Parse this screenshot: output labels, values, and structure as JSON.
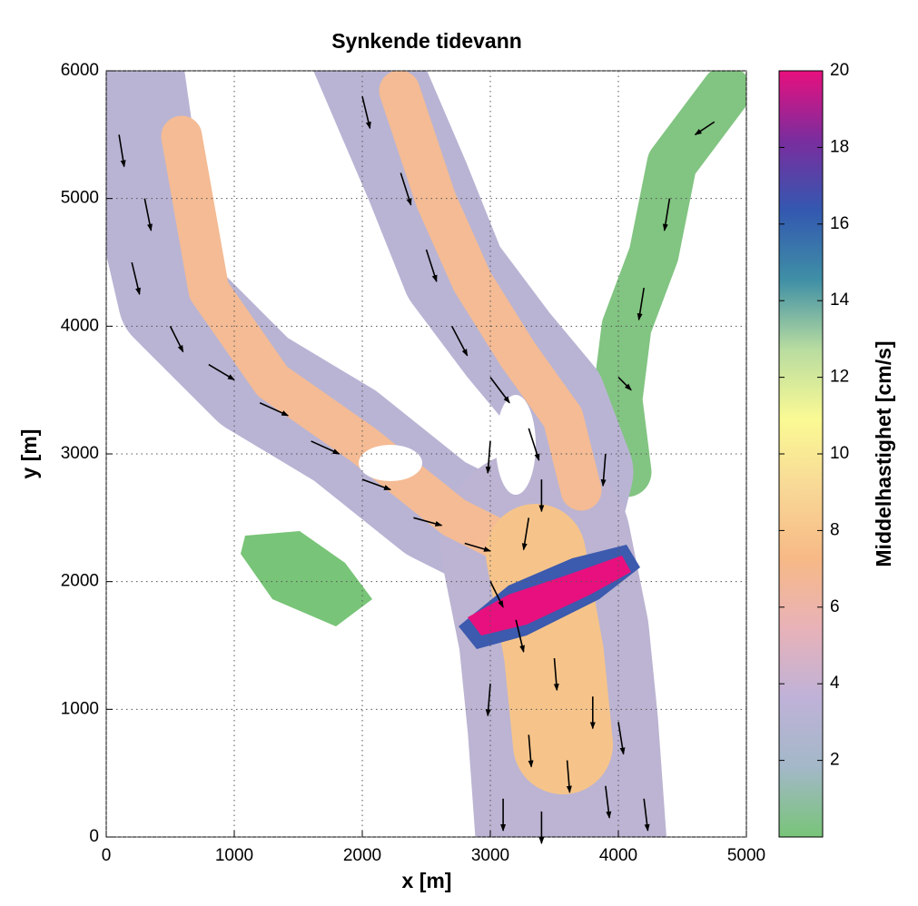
{
  "chart_data": {
    "type": "quiver",
    "title": "Synkende tidevann",
    "x_label": "x [m]",
    "y_label": "y [m]",
    "xlim": [
      0,
      5000
    ],
    "xticks": [
      0,
      1000,
      2000,
      3000,
      4000,
      5000
    ],
    "ylim": [
      0,
      6000
    ],
    "yticks": [
      0,
      1000,
      2000,
      3000,
      4000,
      5000,
      6000
    ],
    "grid": true,
    "arrow_color": "#000000",
    "x": [
      100,
      300,
      200,
      500,
      800,
      1200,
      1600,
      2000,
      2400,
      2800,
      2000,
      2300,
      2500,
      2700,
      3000,
      3300,
      3400,
      3300,
      3000,
      3200,
      3500,
      3800,
      3000,
      3300,
      3600,
      3900,
      4200,
      3100,
      3400,
      4000,
      4750,
      4400,
      4200,
      4000,
      3900,
      3000
    ],
    "y": [
      5500,
      5000,
      4500,
      4000,
      3700,
      3400,
      3100,
      2800,
      2500,
      2300,
      5800,
      5200,
      4600,
      4000,
      3600,
      3200,
      2800,
      2500,
      2000,
      1700,
      1400,
      1100,
      1200,
      800,
      600,
      400,
      300,
      300,
      200,
      900,
      5600,
      5000,
      4300,
      3600,
      3000,
      3100
    ],
    "u": [
      40,
      50,
      60,
      100,
      200,
      220,
      220,
      220,
      220,
      200,
      60,
      80,
      80,
      120,
      150,
      80,
      0,
      -40,
      100,
      60,
      20,
      0,
      -20,
      20,
      20,
      30,
      30,
      0,
      0,
      40,
      -150,
      -40,
      -40,
      100,
      -20,
      -20
    ],
    "v": [
      -250,
      -250,
      -250,
      -200,
      -120,
      -100,
      -100,
      -80,
      -60,
      -60,
      -250,
      -250,
      -250,
      -230,
      -200,
      -250,
      -250,
      -250,
      -200,
      -250,
      -250,
      -250,
      -250,
      -250,
      -250,
      -250,
      -250,
      -250,
      -250,
      -250,
      -100,
      -250,
      -250,
      -100,
      -250,
      -250
    ],
    "colorbar": {
      "label": "Middelhastighet [cm/s]",
      "clim": [
        0,
        20
      ],
      "ticks": [
        2,
        4,
        6,
        8,
        10,
        12,
        14,
        16,
        18,
        20
      ],
      "colormap": [
        "#78c478",
        "#a3b8c8",
        "#bfb2d8",
        "#e8b2b8",
        "#f7b986",
        "#f8d896",
        "#fafa94",
        "#b8dca0",
        "#3f8fa6",
        "#3358b0",
        "#7a2d9e",
        "#e8107e"
      ]
    }
  }
}
